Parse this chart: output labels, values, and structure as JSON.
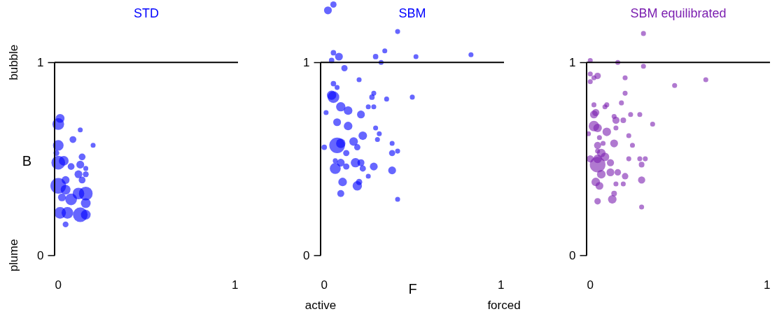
{
  "chart_data": [
    {
      "type": "bubble",
      "title": "STD",
      "ylabel": "B",
      "annotations": [
        "bubble",
        "plume"
      ],
      "xlim": [
        0,
        1
      ],
      "ylim": [
        0,
        1.32
      ],
      "xticks": [
        0,
        1
      ],
      "yticks": [
        0,
        1
      ],
      "series": [
        {
          "color": "#0000ff",
          "x": [
            0.03,
            0.02,
            0.14,
            0.1,
            0.21,
            0.02,
            0.01,
            0.15,
            0.02,
            0.05,
            0.14,
            0.09,
            0.17,
            0.13,
            0.17,
            0.15,
            0.02,
            0.06,
            0.06,
            0.13,
            0.17,
            0.04,
            0.09,
            0.17,
            0.03,
            0.07,
            0.14,
            0.17,
            0.06
          ],
          "values": [
            0.71,
            0.68,
            0.65,
            0.6,
            0.57,
            0.57,
            0.53,
            0.51,
            0.48,
            0.49,
            0.47,
            0.46,
            0.45,
            0.42,
            0.42,
            0.39,
            0.36,
            0.39,
            0.34,
            0.32,
            0.32,
            0.3,
            0.29,
            0.27,
            0.22,
            0.22,
            0.21,
            0.21,
            0.16
          ],
          "sizes": [
            0.32,
            0.56,
            0.1,
            0.19,
            0.1,
            0.47,
            0.14,
            0.19,
            0.77,
            0.39,
            0.25,
            0.19,
            0.1,
            0.25,
            0.14,
            0.19,
            1,
            0.25,
            0.39,
            0.56,
            0.77,
            0.25,
            0.56,
            0.39,
            0.56,
            0.56,
            0.88,
            0.39,
            0.14
          ]
        }
      ]
    },
    {
      "type": "bubble",
      "title": "SBM",
      "xlabel": "F",
      "annotations": [
        "active",
        "forced"
      ],
      "xlim": [
        0,
        1
      ],
      "ylim": [
        0,
        1.32
      ],
      "xticks": [
        0,
        1
      ],
      "yticks": [
        0,
        1
      ],
      "series": [
        {
          "color": "#0000ff",
          "x": [
            0.07,
            0.04,
            0.42,
            0.35,
            0.07,
            0.1,
            0.3,
            0.52,
            0.82,
            0.06,
            0.33,
            0.13,
            0.21,
            0.07,
            0.09,
            0.06,
            0.07,
            0.29,
            0.28,
            0.36,
            0.5,
            0.11,
            0.15,
            0.26,
            0.29,
            0.03,
            0.22,
            0.09,
            0.15,
            0.3,
            0.32,
            0.23,
            0.31,
            0.02,
            0.09,
            0.11,
            0.18,
            0.2,
            0.14,
            0.39,
            0.39,
            0.42,
            0.08,
            0.11,
            0.14,
            0.19,
            0.22,
            0.23,
            0.29,
            0.08,
            0.26,
            0.39,
            0.12,
            0.2,
            0.21,
            0.11,
            0.42
          ],
          "values": [
            1.3,
            1.27,
            1.16,
            1.06,
            1.05,
            1.03,
            1.03,
            1.03,
            1.04,
            1.01,
            1.0,
            0.97,
            0.91,
            0.89,
            0.87,
            0.83,
            0.82,
            0.84,
            0.82,
            0.81,
            0.82,
            0.77,
            0.75,
            0.77,
            0.77,
            0.74,
            0.73,
            0.69,
            0.67,
            0.66,
            0.63,
            0.62,
            0.6,
            0.56,
            0.57,
            0.58,
            0.59,
            0.56,
            0.53,
            0.58,
            0.53,
            0.54,
            0.49,
            0.48,
            0.46,
            0.48,
            0.48,
            0.45,
            0.46,
            0.45,
            0.41,
            0.44,
            0.38,
            0.36,
            0.38,
            0.32,
            0.29
          ],
          "sizes": [
            0.16,
            0.25,
            0.1,
            0.1,
            0.12,
            0.25,
            0.12,
            0.1,
            0.1,
            0.12,
            0.1,
            0.16,
            0.1,
            0.12,
            0.1,
            0.36,
            0.56,
            0.1,
            0.12,
            0.1,
            0.1,
            0.36,
            0.3,
            0.1,
            0.1,
            0.1,
            0.25,
            0.25,
            0.3,
            0.1,
            0.1,
            0.3,
            0.1,
            0.12,
            1,
            0.36,
            0.3,
            0.16,
            0.16,
            0.1,
            0.16,
            0.1,
            0.1,
            0.25,
            0.16,
            0.36,
            0.2,
            0.16,
            0.25,
            0.49,
            0.1,
            0.25,
            0.3,
            0.36,
            0.16,
            0.2,
            0.1
          ]
        }
      ]
    },
    {
      "type": "bubble",
      "title": "SBM equilibrated",
      "xlim": [
        0,
        1
      ],
      "ylim": [
        0,
        1.32
      ],
      "xticks": [
        0,
        1
      ],
      "yticks": [
        0,
        1
      ],
      "series": [
        {
          "color": "#7b1fb0",
          "x": [
            0.31,
            0.02,
            0.17,
            0.31,
            0.02,
            0.06,
            0.04,
            0.02,
            0.21,
            0.48,
            0.65,
            0.21,
            0.04,
            0.1,
            0.11,
            0.19,
            0.24,
            0.29,
            0.36,
            0.04,
            0.05,
            0.15,
            0.16,
            0.2,
            0.16,
            0.04,
            0.06,
            0.11,
            0.23,
            0.01,
            0.07,
            0.09,
            0.15,
            0.25,
            0.06,
            0.06,
            0.08,
            0.02,
            0.06,
            0.1,
            0.06,
            0.13,
            0.23,
            0.29,
            0.32,
            0.3,
            0.13,
            0.17,
            0.21,
            0.08,
            0.05,
            0.07,
            0.16,
            0.2,
            0.3,
            0.15,
            0.14,
            0.06,
            0.3
          ],
          "values": [
            1.15,
            1.01,
            1.0,
            0.98,
            0.94,
            0.93,
            0.92,
            0.9,
            0.92,
            0.88,
            0.91,
            0.84,
            0.78,
            0.77,
            0.78,
            0.79,
            0.73,
            0.73,
            0.68,
            0.73,
            0.74,
            0.72,
            0.7,
            0.7,
            0.66,
            0.67,
            0.66,
            0.64,
            0.62,
            0.63,
            0.61,
            0.58,
            0.58,
            0.57,
            0.57,
            0.54,
            0.53,
            0.5,
            0.5,
            0.51,
            0.47,
            0.48,
            0.5,
            0.5,
            0.5,
            0.47,
            0.43,
            0.43,
            0.41,
            0.42,
            0.38,
            0.36,
            0.37,
            0.37,
            0.39,
            0.32,
            0.29,
            0.28,
            0.25
          ],
          "sizes": [
            0.1,
            0.1,
            0.1,
            0.1,
            0.1,
            0.17,
            0.1,
            0.1,
            0.1,
            0.1,
            0.1,
            0.1,
            0.1,
            0.1,
            0.1,
            0.1,
            0.1,
            0.1,
            0.1,
            0.25,
            0.21,
            0.1,
            0.21,
            0.13,
            0.1,
            0.46,
            0.3,
            0.3,
            0.1,
            0.1,
            0.1,
            0.1,
            0.25,
            0.1,
            0.21,
            0.1,
            0.3,
            0.21,
            0.3,
            0.3,
            1,
            0.21,
            0.1,
            0.1,
            0.1,
            0.13,
            0.25,
            0.17,
            0.17,
            0.3,
            0.3,
            0.25,
            0.1,
            0.1,
            0.21,
            0.13,
            0.3,
            0.17,
            0.1
          ]
        }
      ]
    }
  ]
}
